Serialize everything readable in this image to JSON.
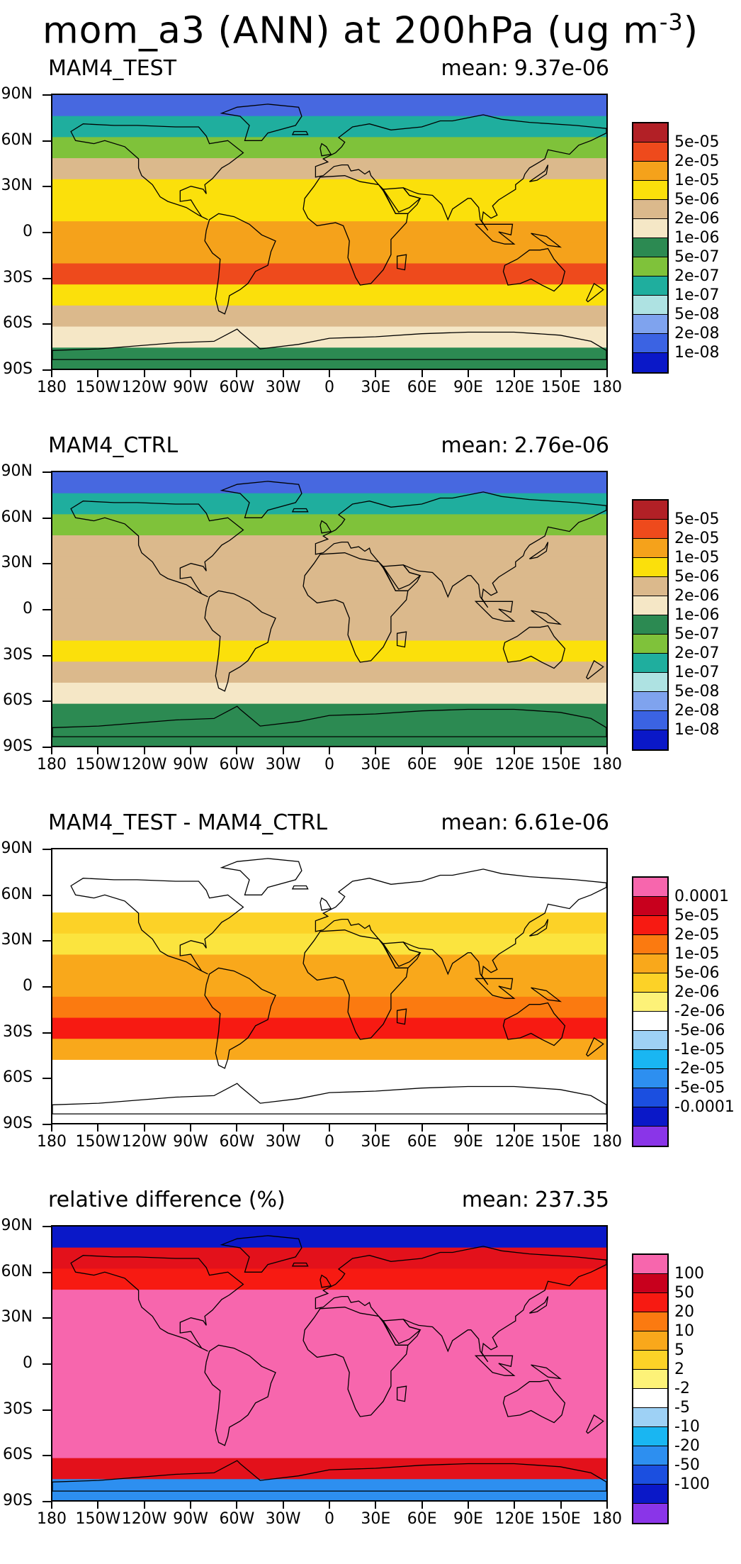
{
  "figure": {
    "title_main": "mom_a3 (ANN) at 200hPa (ug m",
    "title_exp": "-3",
    "title_close": ")"
  },
  "axes": {
    "y_labels": [
      "90N",
      "60N",
      "30N",
      "0",
      "30S",
      "60S",
      "90S"
    ],
    "x_labels": [
      "180",
      "150W",
      "120W",
      "90W",
      "60W",
      "30W",
      "0",
      "30E",
      "60E",
      "90E",
      "120E",
      "150E",
      "180"
    ]
  },
  "panels": [
    {
      "title": "MAM4_TEST",
      "mean_label": "mean:",
      "mean_value": "9.37e-06",
      "legend_labels": [
        "5e-05",
        "2e-05",
        "1e-05",
        "5e-06",
        "2e-06",
        "1e-06",
        "5e-07",
        "2e-07",
        "1e-07",
        "5e-08",
        "2e-08",
        "1e-08"
      ],
      "legend_colors": [
        "#b22026",
        "#ee4a1c",
        "#f5a21b",
        "#fbe00b",
        "#dbb98c",
        "#f5e7c6",
        "#2c8a52",
        "#7fc23a",
        "#1fae9e",
        "#aee2e2",
        "#7fa3ee",
        "#3b63e3",
        "#0a18c8"
      ],
      "bands": [
        "#4768e0",
        "#1fae9e",
        "#7fc23a",
        "#dbb98c",
        "#fbe00b",
        "#fbe00b",
        "#f5a21b",
        "#f5a21b",
        "#ee4a1c",
        "#fbe00b",
        "#dbb98c",
        "#f5e7c6",
        "#2c8a52"
      ]
    },
    {
      "title": "MAM4_CTRL",
      "mean_label": "mean:",
      "mean_value": "2.76e-06",
      "legend_labels": [
        "5e-05",
        "2e-05",
        "1e-05",
        "5e-06",
        "2e-06",
        "1e-06",
        "5e-07",
        "2e-07",
        "1e-07",
        "5e-08",
        "2e-08",
        "1e-08"
      ],
      "legend_colors": [
        "#b22026",
        "#ee4a1c",
        "#f5a21b",
        "#fbe00b",
        "#dbb98c",
        "#f5e7c6",
        "#2c8a52",
        "#7fc23a",
        "#1fae9e",
        "#aee2e2",
        "#7fa3ee",
        "#3b63e3",
        "#0a18c8"
      ],
      "bands": [
        "#4768e0",
        "#1fae9e",
        "#7fc23a",
        "#dbb98c",
        "#dbb98c",
        "#dbb98c",
        "#dbb98c",
        "#dbb98c",
        "#fbe00b",
        "#dbb98c",
        "#f5e7c6",
        "#2c8a52",
        "#2c8a52"
      ]
    },
    {
      "title": "MAM4_TEST - MAM4_CTRL",
      "mean_label": "mean:",
      "mean_value": "6.61e-06",
      "legend_labels": [
        "0.0001",
        "5e-05",
        "2e-05",
        "1e-05",
        "5e-06",
        "2e-06",
        "-2e-06",
        "-5e-06",
        "-1e-05",
        "-2e-05",
        "-5e-05",
        "-0.0001"
      ],
      "legend_colors": [
        "#f766ad",
        "#c8001d",
        "#f71a12",
        "#fb7a10",
        "#f9a81b",
        "#fcd227",
        "#fdf278",
        "#ffffff",
        "#9ed1f5",
        "#19b6f2",
        "#2d8ff0",
        "#1b4fe0",
        "#0a18c8",
        "#8a35e8"
      ],
      "bands": [
        "#ffffff",
        "#ffffff",
        "#ffffff",
        "#fcd227",
        "#fbe43e",
        "#f9a81b",
        "#f9a81b",
        "#fb7a10",
        "#f71a12",
        "#f9a81b",
        "#ffffff",
        "#ffffff",
        "#ffffff"
      ]
    },
    {
      "title": "relative difference (%)",
      "mean_label": "mean:",
      "mean_value": "237.35",
      "legend_labels": [
        "100",
        "50",
        "20",
        "10",
        "5",
        "2",
        "-2",
        "-5",
        "-10",
        "-20",
        "-50",
        "-100"
      ],
      "legend_colors": [
        "#f766ad",
        "#c8001d",
        "#f71a12",
        "#fb7a10",
        "#f9a81b",
        "#fcd227",
        "#fdf278",
        "#ffffff",
        "#9ed1f5",
        "#19b6f2",
        "#2d8ff0",
        "#1b4fe0",
        "#0a18c8",
        "#8a35e8"
      ],
      "bands": [
        "#0a18c8",
        "#e3111b",
        "#f71a12",
        "#f766ad",
        "#f766ad",
        "#f766ad",
        "#f766ad",
        "#f766ad",
        "#f766ad",
        "#f766ad",
        "#f766ad",
        "#e3111b",
        "#2d8ff0"
      ]
    }
  ]
}
